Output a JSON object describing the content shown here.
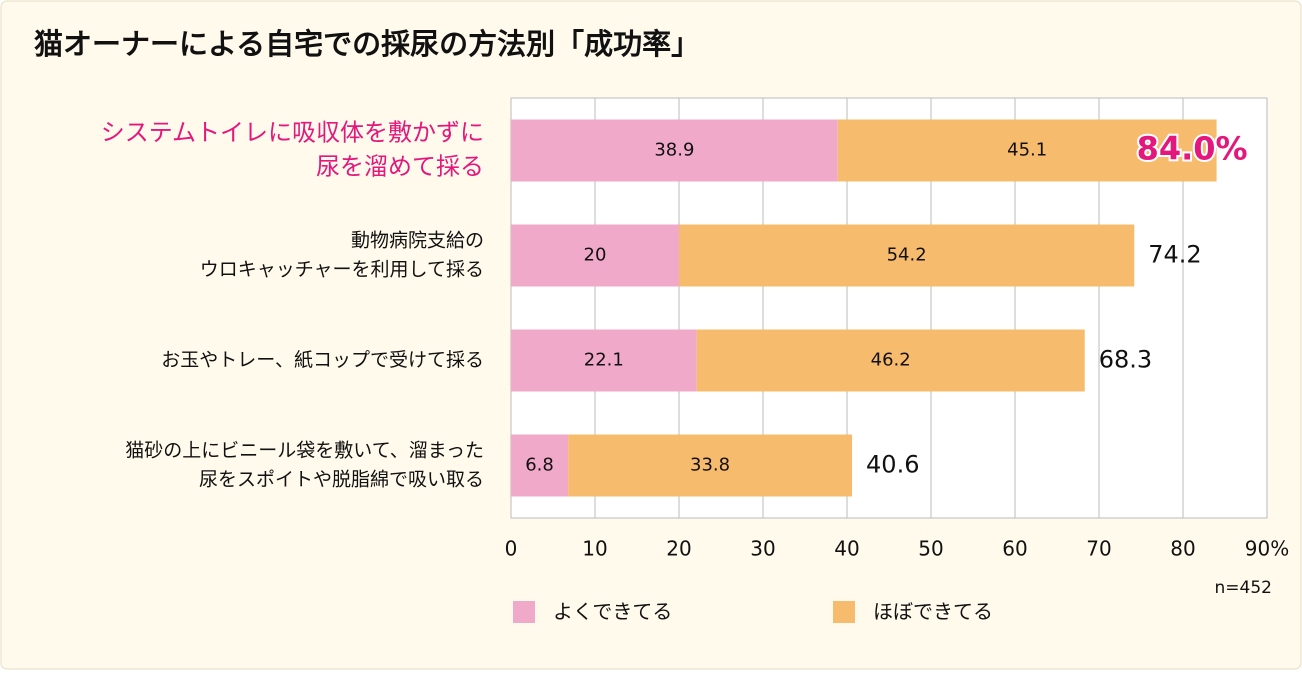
{
  "chart_data": {
    "type": "stacked-bar-horizontal",
    "title": "猫オーナーによる自宅での採尿の方法別「成功率」",
    "categories": [
      [
        "システムトイレに吸収体を敷かずに",
        "尿を溜めて採る"
      ],
      [
        "動物病院支給の",
        "ウロキャッチャーを利用して採る"
      ],
      [
        "お玉やトレー、紙コップで受けて採る"
      ],
      [
        "猫砂の上にビニール袋を敷いて、溜まった",
        "尿をスポイトや脱脂綿で吸い取る"
      ]
    ],
    "highlight_color": "#e4177c",
    "series": [
      {
        "name": "よくできてる",
        "color": "#f1a9c9",
        "values": [
          38.9,
          20,
          22.1,
          6.8
        ]
      },
      {
        "name": "ほぼできてる",
        "color": "#f7bb6e",
        "values": [
          45.1,
          54.2,
          46.2,
          33.8
        ]
      }
    ],
    "totals": [
      84.0,
      74.2,
      68.3,
      40.6
    ],
    "total_labels": [
      "84.0%",
      "74.2",
      "68.3",
      "40.6"
    ],
    "xlim": [
      0,
      90
    ],
    "xticks": [
      0,
      10,
      20,
      30,
      40,
      50,
      60,
      70,
      80,
      {
        "value": 90,
        "label": "90%"
      }
    ],
    "grid": true,
    "note": "n=452"
  }
}
